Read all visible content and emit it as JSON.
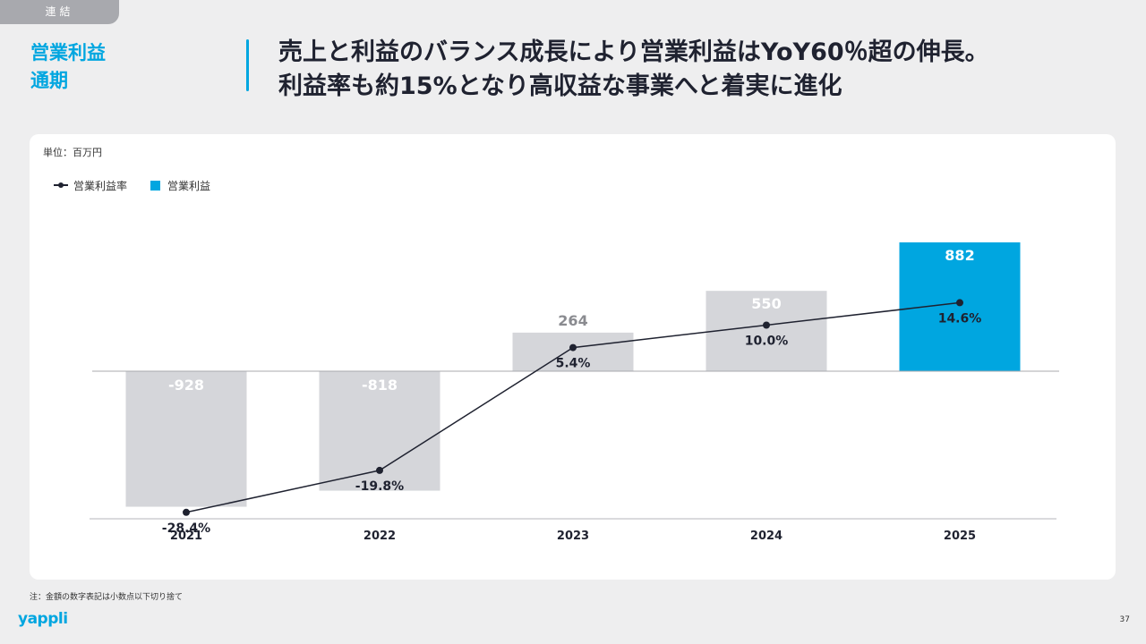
{
  "header": {
    "tag": "連結",
    "section_line1": "営業利益",
    "section_line2": "通期",
    "headline_line1": "売上と利益のバランス成長により営業利益はYoY60％超の伸長。",
    "headline_line2": "利益率も約15%となり高収益な事業へと着実に進化"
  },
  "chart_meta": {
    "unit": "単位：百万円",
    "legend_line": "営業利益率",
    "legend_bar": "営業利益"
  },
  "colors": {
    "accent": "#00a6e0",
    "bar_gray": "#d5d6da",
    "line": "#1f2230"
  },
  "chart_data": {
    "type": "bar",
    "categories": [
      "2021",
      "2022",
      "2023",
      "2024",
      "2025"
    ],
    "series": [
      {
        "name": "営業利益",
        "type": "bar",
        "values": [
          -928,
          -818,
          264,
          550,
          882
        ],
        "labels": [
          "-928",
          "-818",
          "264",
          "550",
          "882"
        ],
        "highlight_index": 4
      },
      {
        "name": "営業利益率",
        "type": "line",
        "values": [
          -28.4,
          -19.8,
          5.4,
          10.0,
          14.6
        ],
        "labels": [
          "-28.4%",
          "-19.8%",
          "5.4%",
          "10.0%",
          "14.6%"
        ]
      }
    ],
    "legend_position": "top-left"
  },
  "footer": {
    "note": "注：金額の数字表記は小数点以下切り捨て",
    "logo": "yappli",
    "page_number": "37"
  }
}
